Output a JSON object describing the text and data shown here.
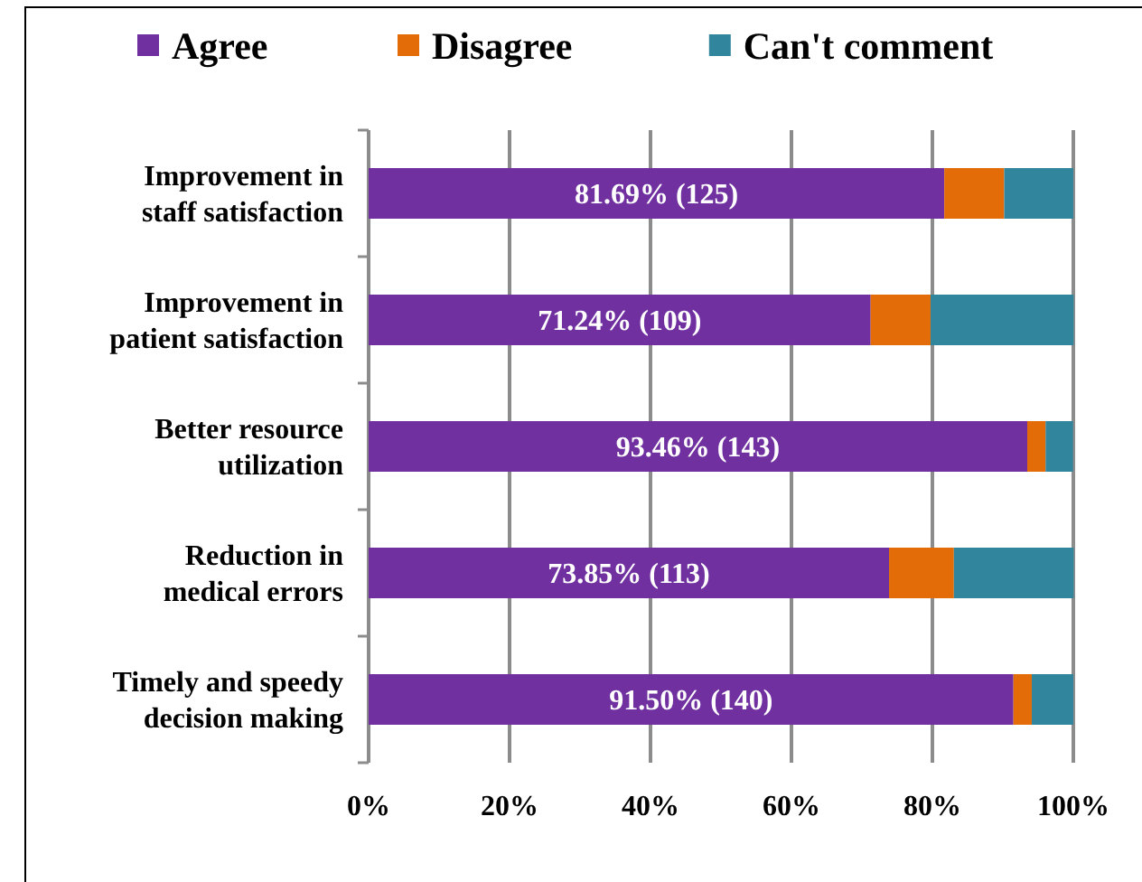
{
  "chart_data": {
    "type": "bar",
    "orientation": "horizontal",
    "stacked": true,
    "categories": [
      "Improvement in staff satisfaction",
      "Improvement in patient satisfaction",
      "Better resource utilization",
      "Reduction in medical errors",
      "Timely and speedy decision making"
    ],
    "series": [
      {
        "name": "Agree",
        "color": "#7030a0",
        "values": [
          81.69,
          71.24,
          93.46,
          73.85,
          91.5
        ],
        "value_labels": [
          "81.69% (125)",
          "71.24% (109)",
          "93.46% (143)",
          "73.85% (113)",
          "91.50% (140)"
        ]
      },
      {
        "name": "Disagree",
        "color": "#e36c09",
        "values": [
          8.5,
          8.5,
          2.6,
          9.2,
          2.6
        ]
      },
      {
        "name": "Can't comment",
        "color": "#31859c",
        "values": [
          9.8,
          20.3,
          3.9,
          17.0,
          5.9
        ]
      }
    ],
    "xlim": [
      0,
      100
    ],
    "xticks": [
      {
        "value": 0,
        "label": "0%"
      },
      {
        "value": 20,
        "label": "20%"
      },
      {
        "value": 40,
        "label": "40%"
      },
      {
        "value": 60,
        "label": "60%"
      },
      {
        "value": 80,
        "label": "80%"
      },
      {
        "value": 100,
        "label": "100%"
      }
    ],
    "grid": "x",
    "legend": "top"
  }
}
